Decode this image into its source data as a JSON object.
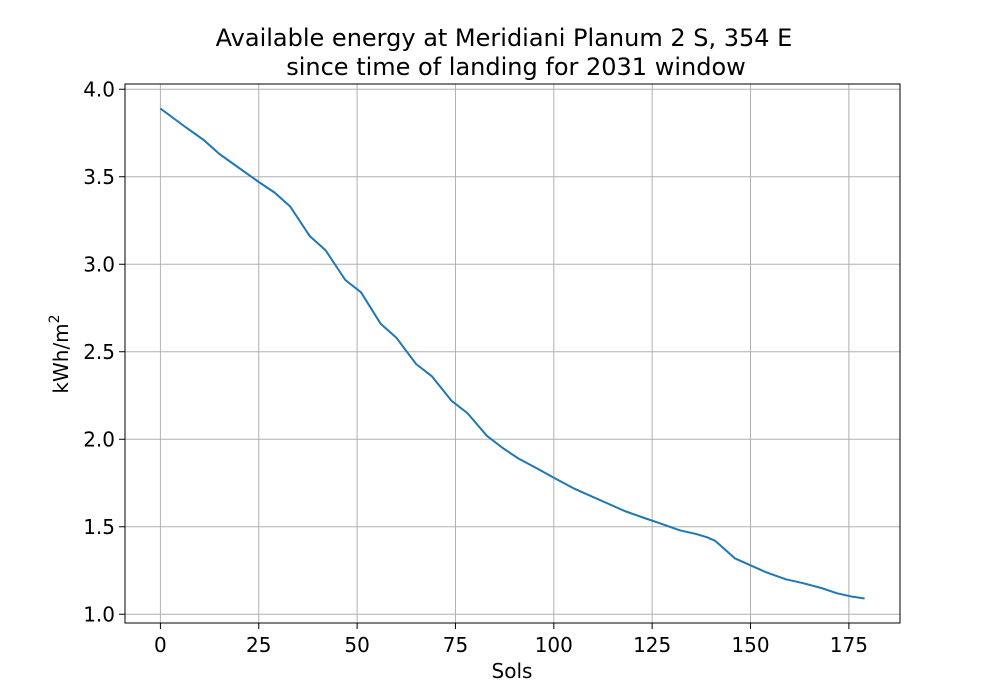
{
  "chart_data": {
    "type": "line",
    "title_line1": "Available energy at Meridiani Planum 2 S, 354 E",
    "title_line2": "since time of landing for 2031 window",
    "xlabel": "Sols",
    "ylabel_base": "kWh/m",
    "ylabel_sup": "2",
    "xlim": [
      -9,
      188
    ],
    "ylim": [
      0.95,
      4.03
    ],
    "xticks": [
      0,
      25,
      50,
      75,
      100,
      125,
      150,
      175
    ],
    "yticks": [
      1.0,
      1.5,
      2.0,
      2.5,
      3.0,
      3.5,
      4.0
    ],
    "ytick_labels": [
      "1.0",
      "1.5",
      "2.0",
      "2.5",
      "3.0",
      "3.5",
      "4.0"
    ],
    "grid": true,
    "series": [
      {
        "color": "#1f77b4",
        "x": [
          0,
          6,
          11,
          15,
          20,
          25,
          29,
          33,
          38,
          42,
          47,
          51,
          56,
          60,
          65,
          69,
          74,
          78,
          83,
          87,
          91,
          96,
          100,
          105,
          109,
          114,
          118,
          123,
          127,
          132,
          136,
          139,
          141,
          143,
          146,
          150,
          154,
          159,
          163,
          168,
          172,
          176,
          179
        ],
        "y": [
          3.89,
          3.79,
          3.71,
          3.63,
          3.55,
          3.47,
          3.41,
          3.33,
          3.16,
          3.08,
          2.91,
          2.84,
          2.66,
          2.58,
          2.43,
          2.36,
          2.22,
          2.15,
          2.02,
          1.95,
          1.89,
          1.83,
          1.78,
          1.72,
          1.68,
          1.63,
          1.59,
          1.55,
          1.52,
          1.48,
          1.46,
          1.44,
          1.42,
          1.38,
          1.32,
          1.28,
          1.24,
          1.2,
          1.18,
          1.15,
          1.12,
          1.1,
          1.09
        ]
      }
    ]
  }
}
